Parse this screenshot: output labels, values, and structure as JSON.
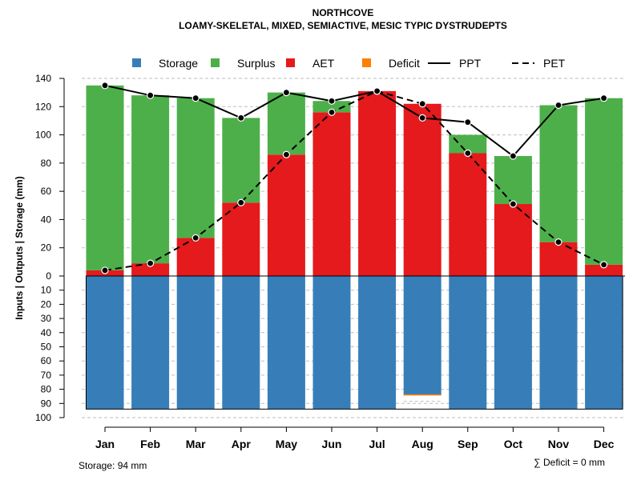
{
  "chart_data": {
    "type": "bar",
    "title": "NORTHCOVE",
    "subtitle": "LOAMY-SKELETAL, MIXED, SEMIACTIVE, MESIC TYPIC DYSTRUDEPTS",
    "ylabel": "Inputs | Outputs | Storage    (mm)",
    "ylim_top": [
      0,
      140
    ],
    "ylim_bottom": [
      0,
      100
    ],
    "yticks_top": [
      "0",
      "20",
      "40",
      "60",
      "80",
      "100",
      "120",
      "140"
    ],
    "yticks_bottom": [
      "10",
      "20",
      "30",
      "40",
      "50",
      "60",
      "70",
      "80",
      "90",
      "100"
    ],
    "categories": [
      "Jan",
      "Feb",
      "Mar",
      "Apr",
      "May",
      "Jun",
      "Jul",
      "Aug",
      "Sep",
      "Oct",
      "Nov",
      "Dec"
    ],
    "series": [
      {
        "name": "Storage",
        "color": "#377eb8",
        "values": [
          94,
          94,
          94,
          94,
          94,
          94,
          94,
          84,
          94,
          94,
          94,
          94
        ]
      },
      {
        "name": "Surplus",
        "color": "#4daf4a",
        "values": [
          131,
          119,
          99,
          60,
          44,
          8,
          0,
          0,
          13,
          34,
          97,
          118
        ]
      },
      {
        "name": "AET",
        "color": "#e41a1c",
        "values": [
          4,
          9,
          27,
          52,
          86,
          116,
          131,
          122,
          87,
          51,
          24,
          8
        ]
      },
      {
        "name": "Deficit",
        "color": "#ff7f00",
        "values": [
          0,
          0,
          0,
          0,
          0,
          0,
          0,
          0,
          0,
          0,
          0,
          0
        ]
      },
      {
        "name": "PPT",
        "color": "#000000",
        "values": [
          135,
          128,
          126,
          112,
          130,
          124,
          131,
          112,
          109,
          85,
          121,
          126
        ]
      },
      {
        "name": "PET",
        "color": "#000000",
        "values": [
          4,
          9,
          27,
          52,
          86,
          116,
          131,
          122,
          87,
          51,
          24,
          8
        ]
      }
    ],
    "legend": [
      "Storage",
      "Surplus",
      "AET",
      "Deficit",
      "PPT",
      "PET"
    ],
    "legend_position": "top",
    "grid": true
  },
  "footer": {
    "storage_note": "Storage: 94 mm",
    "deficit_note": "∑ Deficit = 0 mm"
  }
}
